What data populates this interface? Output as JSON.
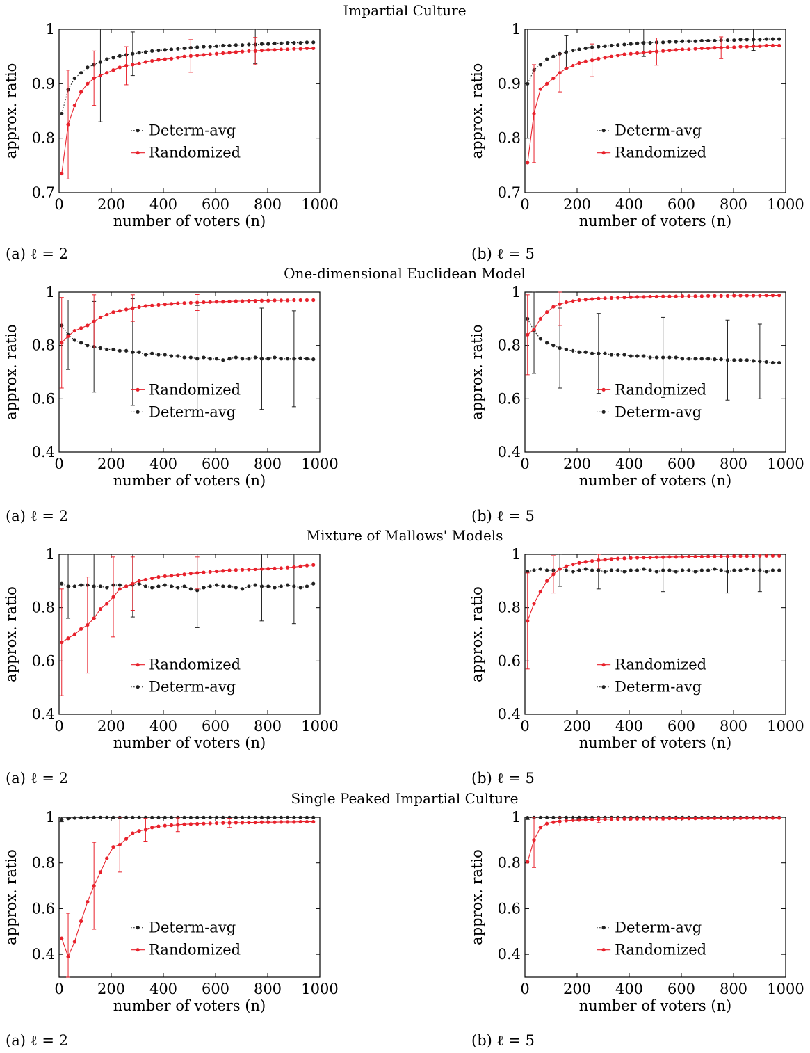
{
  "figure": {
    "ylabel": "approx. ratio",
    "xlabel": "number of voters (n)",
    "row_titles": [
      "Impartial Culture",
      "One-dimensional Euclidean Model",
      "Mixture of Mallows' Models",
      "Single Peaked Impartial Culture"
    ],
    "caption_a": "(a) ℓ = 2",
    "caption_b": "(b) ℓ = 5",
    "colors": {
      "Randomized": "#e8212b",
      "Determ-avg": "#222222"
    }
  },
  "chart_data": [
    {
      "type": "line",
      "panel": "impartial-culture-l2",
      "ylim": [
        0.7,
        1.0
      ],
      "yticks": [
        0.7,
        0.8,
        0.9,
        1.0
      ],
      "xlim": [
        0,
        1000
      ],
      "xticks": [
        0,
        200,
        400,
        600,
        800,
        1000
      ],
      "legend_order": [
        "Determ-avg",
        "Randomized"
      ],
      "series": [
        {
          "name": "Determ-avg",
          "values": [
            0.845,
            0.889,
            0.91,
            0.92,
            0.93,
            0.935,
            0.94,
            0.945,
            0.948,
            0.951,
            0.953,
            0.955,
            0.957,
            0.958,
            0.96,
            0.961,
            0.962,
            0.963,
            0.964,
            0.965,
            0.966,
            0.967,
            0.968,
            0.968,
            0.969,
            0.97,
            0.97,
            0.971,
            0.971,
            0.972,
            0.972,
            0.973,
            0.973,
            0.974,
            0.974,
            0.975,
            0.975,
            0.975,
            0.976,
            0.976
          ],
          "error": {
            "6": 0.11,
            "11": 0.04,
            "30": 0.035
          }
        },
        {
          "name": "Randomized",
          "values": [
            0.735,
            0.825,
            0.86,
            0.885,
            0.9,
            0.91,
            0.915,
            0.92,
            0.925,
            0.93,
            0.933,
            0.935,
            0.937,
            0.94,
            0.942,
            0.944,
            0.945,
            0.946,
            0.948,
            0.95,
            0.951,
            0.952,
            0.953,
            0.954,
            0.955,
            0.956,
            0.957,
            0.958,
            0.959,
            0.96,
            0.96,
            0.961,
            0.962,
            0.962,
            0.963,
            0.963,
            0.964,
            0.964,
            0.965,
            0.965
          ],
          "error": {
            "1": 0.1,
            "5": 0.05,
            "10": 0.035,
            "20": 0.03,
            "30": 0.025
          }
        }
      ]
    },
    {
      "type": "line",
      "panel": "impartial-culture-l5",
      "ylim": [
        0.7,
        1.0
      ],
      "yticks": [
        0.7,
        0.8,
        0.9,
        1.0
      ],
      "xlim": [
        0,
        1000
      ],
      "xticks": [
        0,
        200,
        400,
        600,
        800,
        1000
      ],
      "legend_order": [
        "Determ-avg",
        "Randomized"
      ],
      "series": [
        {
          "name": "Determ-avg",
          "values": [
            0.9,
            0.925,
            0.935,
            0.945,
            0.95,
            0.955,
            0.958,
            0.961,
            0.963,
            0.965,
            0.967,
            0.968,
            0.969,
            0.97,
            0.971,
            0.972,
            0.973,
            0.974,
            0.975,
            0.975,
            0.976,
            0.976,
            0.977,
            0.977,
            0.978,
            0.978,
            0.978,
            0.979,
            0.979,
            0.979,
            0.98,
            0.98,
            0.98,
            0.981,
            0.981,
            0.981,
            0.981,
            0.982,
            0.982,
            0.982
          ],
          "error": {
            "0": 0.1,
            "6": 0.03,
            "18": 0.025,
            "35": 0.02
          }
        },
        {
          "name": "Randomized",
          "values": [
            0.755,
            0.845,
            0.89,
            0.9,
            0.91,
            0.92,
            0.928,
            0.933,
            0.938,
            0.941,
            0.943,
            0.946,
            0.948,
            0.95,
            0.952,
            0.954,
            0.955,
            0.956,
            0.957,
            0.958,
            0.959,
            0.96,
            0.961,
            0.962,
            0.963,
            0.963,
            0.964,
            0.965,
            0.965,
            0.966,
            0.966,
            0.967,
            0.967,
            0.968,
            0.968,
            0.969,
            0.969,
            0.97,
            0.97,
            0.97
          ],
          "error": {
            "1": 0.09,
            "5": 0.035,
            "10": 0.03,
            "20": 0.025,
            "30": 0.02
          }
        }
      ]
    },
    {
      "type": "line",
      "panel": "euclidean-l2",
      "ylim": [
        0.4,
        1.0
      ],
      "yticks": [
        0.4,
        0.6,
        0.8,
        1.0
      ],
      "xlim": [
        0,
        1000
      ],
      "xticks": [
        0,
        200,
        400,
        600,
        800,
        1000
      ],
      "legend_order": [
        "Randomized",
        "Determ-avg"
      ],
      "series": [
        {
          "name": "Determ-avg",
          "values": [
            0.875,
            0.84,
            0.82,
            0.81,
            0.8,
            0.795,
            0.79,
            0.785,
            0.785,
            0.78,
            0.78,
            0.775,
            0.775,
            0.765,
            0.77,
            0.765,
            0.765,
            0.76,
            0.76,
            0.755,
            0.755,
            0.75,
            0.755,
            0.75,
            0.75,
            0.745,
            0.75,
            0.755,
            0.75,
            0.75,
            0.755,
            0.75,
            0.75,
            0.755,
            0.75,
            0.75,
            0.75,
            0.752,
            0.75,
            0.748
          ],
          "error": {
            "1": 0.13,
            "5": 0.17,
            "11": 0.2,
            "21": 0.2,
            "31": 0.19,
            "36": 0.18
          }
        },
        {
          "name": "Randomized",
          "values": [
            0.81,
            0.835,
            0.855,
            0.865,
            0.875,
            0.89,
            0.905,
            0.915,
            0.925,
            0.93,
            0.935,
            0.94,
            0.944,
            0.948,
            0.95,
            0.952,
            0.954,
            0.956,
            0.958,
            0.959,
            0.96,
            0.961,
            0.962,
            0.963,
            0.964,
            0.964,
            0.965,
            0.966,
            0.966,
            0.967,
            0.967,
            0.968,
            0.968,
            0.969,
            0.969,
            0.969,
            0.97,
            0.97,
            0.97,
            0.97
          ],
          "error": {
            "0": 0.17,
            "5": 0.1,
            "11": 0.05,
            "21": 0.03
          }
        }
      ]
    },
    {
      "type": "line",
      "panel": "euclidean-l5",
      "ylim": [
        0.4,
        1.0
      ],
      "yticks": [
        0.4,
        0.6,
        0.8,
        1.0
      ],
      "xlim": [
        0,
        1000
      ],
      "xticks": [
        0,
        200,
        400,
        600,
        800,
        1000
      ],
      "legend_order": [
        "Randomized",
        "Determ-avg"
      ],
      "series": [
        {
          "name": "Determ-avg",
          "values": [
            0.9,
            0.855,
            0.825,
            0.81,
            0.8,
            0.79,
            0.785,
            0.78,
            0.775,
            0.775,
            0.77,
            0.77,
            0.77,
            0.765,
            0.765,
            0.765,
            0.76,
            0.76,
            0.76,
            0.755,
            0.755,
            0.755,
            0.755,
            0.755,
            0.75,
            0.75,
            0.75,
            0.75,
            0.75,
            0.748,
            0.748,
            0.745,
            0.745,
            0.745,
            0.745,
            0.742,
            0.74,
            0.738,
            0.735,
            0.735
          ],
          "error": {
            "1": 0.16,
            "5": 0.15,
            "11": 0.15,
            "21": 0.15,
            "31": 0.15,
            "36": 0.14
          }
        },
        {
          "name": "Randomized",
          "values": [
            0.84,
            0.86,
            0.9,
            0.925,
            0.945,
            0.955,
            0.962,
            0.966,
            0.97,
            0.972,
            0.974,
            0.976,
            0.977,
            0.978,
            0.979,
            0.98,
            0.981,
            0.982,
            0.982,
            0.983,
            0.983,
            0.984,
            0.984,
            0.984,
            0.985,
            0.985,
            0.985,
            0.985,
            0.986,
            0.986,
            0.986,
            0.986,
            0.987,
            0.987,
            0.987,
            0.987,
            0.987,
            0.988,
            0.988,
            0.988
          ],
          "error": {
            "0": 0.15,
            "5": 0.08
          }
        }
      ]
    },
    {
      "type": "line",
      "panel": "mallows-l2",
      "ylim": [
        0.4,
        1.0
      ],
      "yticks": [
        0.4,
        0.6,
        0.8,
        1.0
      ],
      "xlim": [
        0,
        1000
      ],
      "xticks": [
        0,
        200,
        400,
        600,
        800,
        1000
      ],
      "legend_order": [
        "Randomized",
        "Determ-avg"
      ],
      "series": [
        {
          "name": "Determ-avg",
          "values": [
            0.89,
            0.88,
            0.88,
            0.885,
            0.885,
            0.88,
            0.88,
            0.875,
            0.885,
            0.885,
            0.88,
            0.885,
            0.89,
            0.88,
            0.875,
            0.88,
            0.885,
            0.88,
            0.875,
            0.88,
            0.87,
            0.865,
            0.875,
            0.88,
            0.885,
            0.88,
            0.88,
            0.875,
            0.87,
            0.88,
            0.885,
            0.88,
            0.88,
            0.875,
            0.88,
            0.885,
            0.88,
            0.875,
            0.88,
            0.89
          ],
          "error": {
            "1": 0.12,
            "5": 0.12,
            "11": 0.12,
            "21": 0.14,
            "31": 0.13,
            "36": 0.14
          }
        },
        {
          "name": "Randomized",
          "values": [
            0.67,
            0.685,
            0.7,
            0.72,
            0.735,
            0.76,
            0.795,
            0.815,
            0.84,
            0.87,
            0.88,
            0.89,
            0.9,
            0.905,
            0.91,
            0.915,
            0.918,
            0.92,
            0.922,
            0.925,
            0.928,
            0.93,
            0.932,
            0.934,
            0.936,
            0.938,
            0.94,
            0.941,
            0.942,
            0.943,
            0.944,
            0.945,
            0.946,
            0.947,
            0.948,
            0.95,
            0.952,
            0.955,
            0.958,
            0.96
          ],
          "error": {
            "0": 0.2,
            "4": 0.18,
            "8": 0.15,
            "11": 0.1,
            "21": 0.06
          }
        }
      ]
    },
    {
      "type": "line",
      "panel": "mallows-l5",
      "ylim": [
        0.4,
        1.0
      ],
      "yticks": [
        0.4,
        0.6,
        0.8,
        1.0
      ],
      "xlim": [
        0,
        1000
      ],
      "xticks": [
        0,
        200,
        400,
        600,
        800,
        1000
      ],
      "legend_order": [
        "Randomized",
        "Determ-avg"
      ],
      "series": [
        {
          "name": "Determ-avg",
          "values": [
            0.935,
            0.94,
            0.945,
            0.94,
            0.94,
            0.945,
            0.94,
            0.935,
            0.94,
            0.945,
            0.94,
            0.94,
            0.935,
            0.94,
            0.94,
            0.935,
            0.94,
            0.94,
            0.945,
            0.94,
            0.935,
            0.94,
            0.94,
            0.935,
            0.94,
            0.94,
            0.935,
            0.94,
            0.94,
            0.945,
            0.94,
            0.935,
            0.94,
            0.94,
            0.945,
            0.94,
            0.94,
            0.935,
            0.94,
            0.94
          ],
          "error": {
            "5": 0.065,
            "11": 0.07,
            "21": 0.08,
            "31": 0.08,
            "36": 0.08
          }
        },
        {
          "name": "Randomized",
          "values": [
            0.75,
            0.815,
            0.86,
            0.9,
            0.925,
            0.945,
            0.955,
            0.962,
            0.968,
            0.972,
            0.975,
            0.978,
            0.98,
            0.982,
            0.984,
            0.985,
            0.986,
            0.987,
            0.988,
            0.988,
            0.989,
            0.989,
            0.99,
            0.99,
            0.99,
            0.991,
            0.991,
            0.991,
            0.992,
            0.992,
            0.992,
            0.992,
            0.993,
            0.993,
            0.993,
            0.993,
            0.994,
            0.994,
            0.994,
            0.994
          ],
          "error": {
            "0": 0.18,
            "4": 0.07,
            "11": 0.03
          }
        }
      ]
    },
    {
      "type": "line",
      "panel": "sp-impartial-culture-l2",
      "ylim": [
        0.3,
        1.0
      ],
      "yticks": [
        0.4,
        0.6,
        0.8,
        1.0
      ],
      "xlim": [
        0,
        1000
      ],
      "xticks": [
        0,
        200,
        400,
        600,
        800,
        1000
      ],
      "legend_order": [
        "Determ-avg",
        "Randomized"
      ],
      "series": [
        {
          "name": "Determ-avg",
          "values": [
            0.99,
            0.995,
            0.997,
            0.998,
            0.998,
            0.999,
            0.999,
            0.999,
            0.999,
            0.999,
            0.999,
            0.999,
            0.999,
            0.999,
            0.999,
            0.999,
            0.999,
            0.999,
            0.999,
            0.999,
            0.999,
            0.999,
            0.999,
            0.999,
            0.999,
            0.999,
            0.999,
            0.999,
            0.999,
            0.999,
            0.999,
            0.999,
            0.999,
            0.999,
            0.999,
            0.999,
            0.999,
            0.999,
            0.999,
            0.999
          ],
          "error": {
            "0": 0.01
          }
        },
        {
          "name": "Randomized",
          "values": [
            0.47,
            0.39,
            0.455,
            0.545,
            0.63,
            0.7,
            0.76,
            0.82,
            0.87,
            0.88,
            0.905,
            0.93,
            0.94,
            0.945,
            0.955,
            0.96,
            0.963,
            0.965,
            0.967,
            0.969,
            0.97,
            0.971,
            0.972,
            0.973,
            0.974,
            0.975,
            0.975,
            0.976,
            0.976,
            0.977,
            0.977,
            0.978,
            0.978,
            0.978,
            0.979,
            0.979,
            0.979,
            0.98,
            0.98,
            0.98
          ],
          "error": {
            "1": 0.19,
            "5": 0.19,
            "9": 0.12,
            "13": 0.05,
            "18": 0.03,
            "26": 0.02
          }
        }
      ]
    },
    {
      "type": "line",
      "panel": "sp-impartial-culture-l5",
      "ylim": [
        0.3,
        1.0
      ],
      "yticks": [
        0.4,
        0.6,
        0.8,
        1.0
      ],
      "xlim": [
        0,
        1000
      ],
      "xticks": [
        0,
        200,
        400,
        600,
        800,
        1000
      ],
      "legend_order": [
        "Determ-avg",
        "Randomized"
      ],
      "series": [
        {
          "name": "Determ-avg",
          "values": [
            0.998,
            0.999,
            0.999,
            0.999,
            0.999,
            0.999,
            0.999,
            0.999,
            0.999,
            0.999,
            0.999,
            0.999,
            0.999,
            0.999,
            0.999,
            0.999,
            0.999,
            0.999,
            0.999,
            0.999,
            0.999,
            0.999,
            0.999,
            0.999,
            0.999,
            0.999,
            0.999,
            0.999,
            0.999,
            0.999,
            0.999,
            0.999,
            0.999,
            0.999,
            0.999,
            0.999,
            0.999,
            0.999,
            0.999,
            0.999
          ],
          "error": {
            "0": 0.008
          }
        },
        {
          "name": "Randomized",
          "values": [
            0.805,
            0.9,
            0.955,
            0.972,
            0.978,
            0.982,
            0.985,
            0.987,
            0.988,
            0.989,
            0.99,
            0.991,
            0.991,
            0.992,
            0.992,
            0.993,
            0.993,
            0.993,
            0.994,
            0.994,
            0.994,
            0.994,
            0.995,
            0.995,
            0.995,
            0.995,
            0.995,
            0.996,
            0.996,
            0.996,
            0.996,
            0.996,
            0.996,
            0.996,
            0.997,
            0.997,
            0.997,
            0.997,
            0.997,
            0.997
          ],
          "error": {
            "1": 0.12,
            "5": 0.02,
            "11": 0.015,
            "21": 0.01
          }
        }
      ]
    }
  ]
}
